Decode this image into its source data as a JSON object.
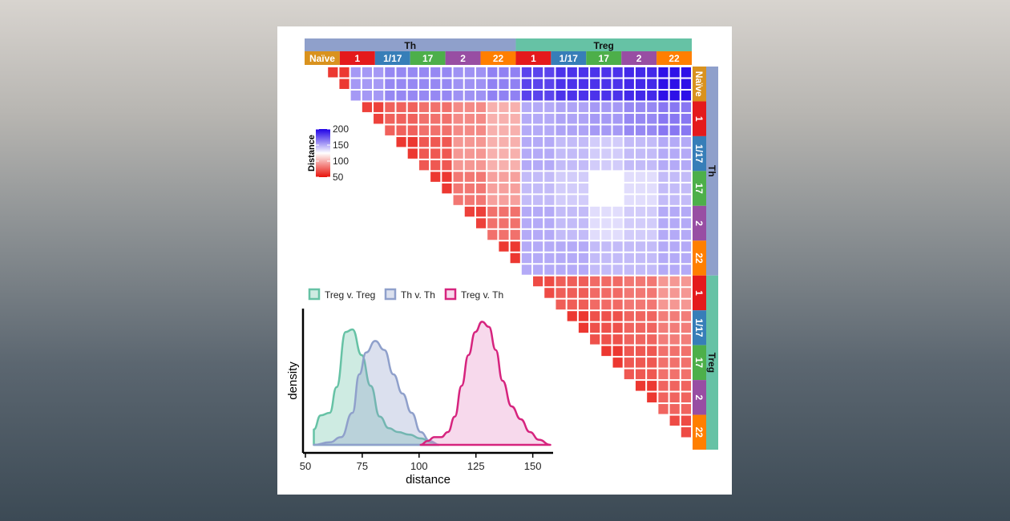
{
  "chart_data": [
    {
      "type": "heatmap",
      "title": "",
      "legend_title": "Distance",
      "legend_ticks": [
        200,
        150,
        100,
        50
      ],
      "color_range": [
        50,
        200
      ],
      "colors": {
        "low": "#e8120a",
        "mid": "#ffffff",
        "high": "#1f00e6"
      },
      "cells_per_group": 3,
      "top_groups": [
        {
          "label": "Th",
          "color": "#8fa0cb"
        },
        {
          "label": "Treg",
          "color": "#66c2a5"
        }
      ],
      "subgroups": [
        {
          "label": "Naïve",
          "color": "#d9921e",
          "group": "Th"
        },
        {
          "label": "1",
          "color": "#e41a1c",
          "group": "Th"
        },
        {
          "label": "1/17",
          "color": "#377eb8",
          "group": "Th"
        },
        {
          "label": "17",
          "color": "#4daf4a",
          "group": "Th"
        },
        {
          "label": "2",
          "color": "#984ea3",
          "group": "Th"
        },
        {
          "label": "22",
          "color": "#ff7f00",
          "group": "Th"
        },
        {
          "label": "1",
          "color": "#e41a1c",
          "group": "Treg"
        },
        {
          "label": "1/17",
          "color": "#377eb8",
          "group": "Treg"
        },
        {
          "label": "17",
          "color": "#4daf4a",
          "group": "Treg"
        },
        {
          "label": "2",
          "color": "#984ea3",
          "group": "Treg"
        },
        {
          "label": "22",
          "color": "#ff7f00",
          "group": "Treg"
        }
      ],
      "group_distance_matrix": [
        [
          62,
          155,
          160,
          160,
          157,
          162,
          180,
          185,
          185,
          188,
          195
        ],
        [
          0,
          65,
          75,
          80,
          88,
          100,
          150,
          152,
          155,
          160,
          165
        ],
        [
          0,
          0,
          62,
          72,
          92,
          100,
          150,
          145,
          140,
          145,
          150
        ],
        [
          0,
          0,
          0,
          62,
          82,
          95,
          145,
          140,
          125,
          135,
          145
        ],
        [
          0,
          0,
          0,
          0,
          65,
          80,
          150,
          145,
          135,
          140,
          150
        ],
        [
          0,
          0,
          0,
          0,
          0,
          62,
          150,
          150,
          145,
          145,
          150
        ],
        [
          0,
          0,
          0,
          0,
          0,
          0,
          68,
          74,
          78,
          82,
          92
        ],
        [
          0,
          0,
          0,
          0,
          0,
          0,
          0,
          62,
          70,
          76,
          84
        ],
        [
          0,
          0,
          0,
          0,
          0,
          0,
          0,
          0,
          62,
          72,
          80
        ],
        [
          0,
          0,
          0,
          0,
          0,
          0,
          0,
          0,
          0,
          62,
          76
        ],
        [
          0,
          0,
          0,
          0,
          0,
          0,
          0,
          0,
          0,
          0,
          68
        ]
      ]
    },
    {
      "type": "area",
      "xlabel": "distance",
      "ylabel": "density",
      "xlim": [
        50,
        160
      ],
      "ylim": [
        0,
        1
      ],
      "xticks": [
        50,
        75,
        100,
        125,
        150
      ],
      "legend_position": "top",
      "series": [
        {
          "name": "Treg v. Treg",
          "color": "#66c2a5",
          "fill": "#66c2a5",
          "x": [
            53,
            56,
            60,
            63,
            67,
            70,
            74,
            78,
            82,
            86,
            90,
            95,
            100,
            105,
            108
          ],
          "y": [
            0.12,
            0.23,
            0.25,
            0.45,
            0.88,
            0.9,
            0.7,
            0.46,
            0.22,
            0.13,
            0.1,
            0.08,
            0.05,
            0.02,
            0.0
          ]
        },
        {
          "name": "Th v. Th",
          "color": "#8fa0cb",
          "fill": "#8fa0cb",
          "x": [
            53,
            60,
            65,
            70,
            73,
            76,
            80,
            84,
            88,
            92,
            96,
            100,
            104,
            108
          ],
          "y": [
            0.0,
            0.02,
            0.06,
            0.25,
            0.55,
            0.72,
            0.81,
            0.74,
            0.55,
            0.4,
            0.25,
            0.1,
            0.03,
            0.0
          ]
        },
        {
          "name": "Treg v. Th",
          "color": "#d6247e",
          "fill": "#e78ac3",
          "x": [
            100,
            103,
            106,
            109,
            112,
            115,
            118,
            121,
            124,
            127,
            130,
            133,
            136,
            140,
            144,
            148,
            152,
            157
          ],
          "y": [
            0.0,
            0.03,
            0.06,
            0.06,
            0.1,
            0.22,
            0.46,
            0.7,
            0.88,
            0.96,
            0.92,
            0.74,
            0.5,
            0.3,
            0.2,
            0.1,
            0.04,
            0.0
          ]
        }
      ]
    }
  ]
}
